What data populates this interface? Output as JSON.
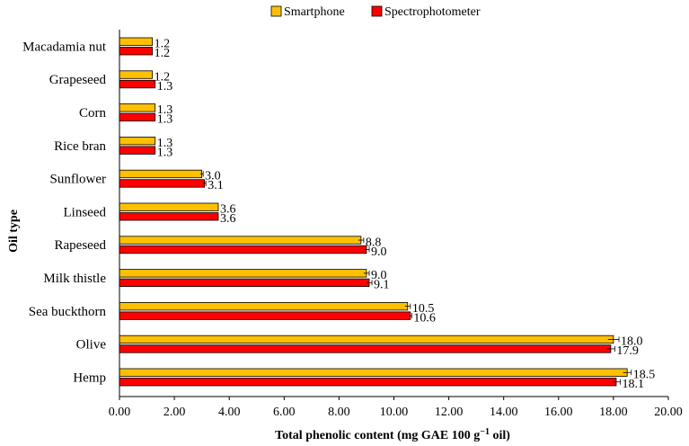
{
  "chart_data": {
    "type": "bar",
    "orientation": "horizontal",
    "title": "",
    "xlabel": "Total phenolic content (mg GAE 100 g",
    "xlabel_sup": "−1",
    "xlabel_suffix": " oil)",
    "ylabel": "Oil type",
    "xlim": [
      0,
      20
    ],
    "xticks": [
      "0.00",
      "2.00",
      "4.00",
      "6.00",
      "8.00",
      "10.00",
      "12.00",
      "14.00",
      "16.00",
      "18.00",
      "20.00"
    ],
    "legend_position": "top-center",
    "categories": [
      "Macadamia nut",
      "Grapeseed",
      "Corn",
      "Rice bran",
      "Sunflower",
      "Linseed",
      "Rapeseed",
      "Milk thistle",
      "Sea buckthorn",
      "Olive",
      "Hemp"
    ],
    "series": [
      {
        "name": "Smartphone",
        "color": "#FFC000",
        "values": [
          1.2,
          1.2,
          1.3,
          1.3,
          3.0,
          3.6,
          8.8,
          9.0,
          10.5,
          18.0,
          18.5
        ],
        "labels": [
          "1.2",
          "1.2",
          "1.3",
          "1.3",
          "3.0",
          "3.6",
          "8.8",
          "9.0",
          "10.5",
          "18.0",
          "18.5"
        ],
        "errors": [
          0,
          0,
          0,
          0,
          0.05,
          0,
          0.1,
          0.1,
          0.1,
          0.2,
          0.15
        ]
      },
      {
        "name": "Spectrophotometer",
        "color": "#FF0000",
        "values": [
          1.2,
          1.3,
          1.3,
          1.3,
          3.1,
          3.6,
          9.0,
          9.1,
          10.6,
          17.9,
          18.1
        ],
        "labels": [
          "1.2",
          "1.3",
          "1.3",
          "1.3",
          "3.1",
          "3.6",
          "9.0",
          "9.1",
          "10.6",
          "17.9",
          "18.1"
        ],
        "errors": [
          0,
          0,
          0,
          0,
          0.05,
          0,
          0.1,
          0.1,
          0.05,
          0.15,
          0.15
        ]
      }
    ]
  }
}
